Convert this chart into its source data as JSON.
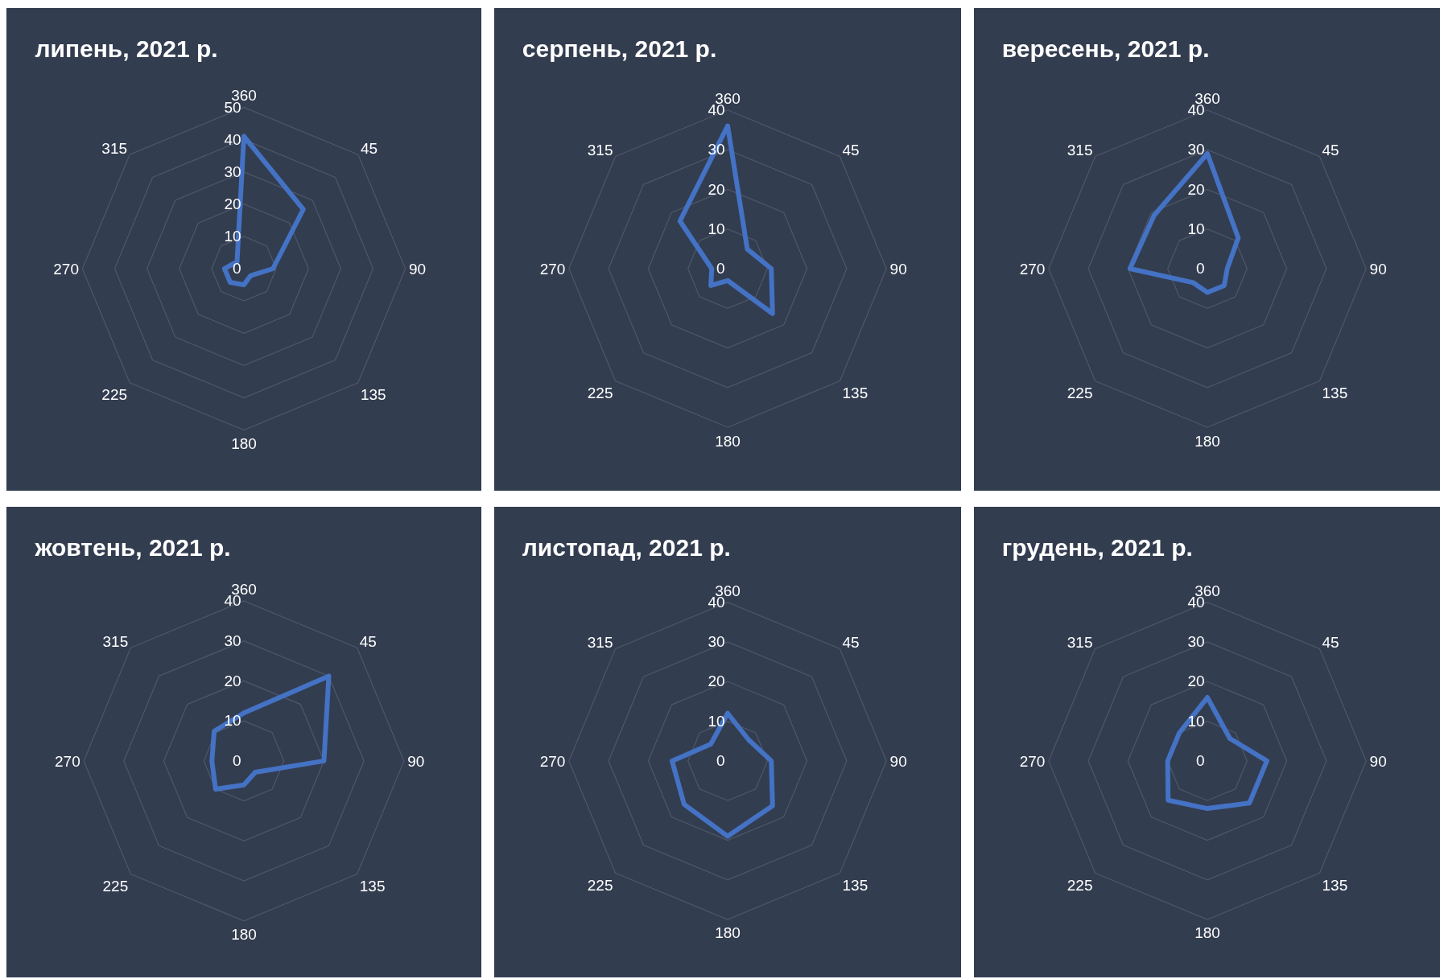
{
  "chart_data": [
    {
      "type": "radar",
      "title": "липень, 2021 р.",
      "categories": [
        "360",
        "45",
        "90",
        "135",
        "180",
        "225",
        "270",
        "315"
      ],
      "series": [
        {
          "color": "#4472c4",
          "values": [
            41,
            26,
            9,
            3,
            5,
            6,
            6,
            3
          ]
        }
      ],
      "ylim": [
        0,
        50
      ],
      "yticks": [
        0,
        10,
        20,
        30,
        40,
        50
      ],
      "grid": true
    },
    {
      "type": "radar",
      "title": "серпень, 2021 р.",
      "categories": [
        "360",
        "45",
        "90",
        "135",
        "180",
        "225",
        "270",
        "315"
      ],
      "series": [
        {
          "color": "#4472c4",
          "values": [
            36,
            7,
            11,
            16,
            3,
            6,
            4,
            17
          ]
        }
      ],
      "ylim": [
        0,
        40
      ],
      "yticks": [
        0,
        10,
        20,
        30,
        40
      ],
      "grid": true
    },
    {
      "type": "radar",
      "title": "вересень, 2021 р.",
      "categories": [
        "360",
        "45",
        "90",
        "135",
        "180",
        "225",
        "270",
        "315"
      ],
      "series": [
        {
          "color": "#4472c4",
          "values": [
            29,
            11,
            5,
            6,
            6,
            5,
            19.5,
            19
          ]
        }
      ],
      "ylim": [
        0,
        40
      ],
      "yticks": [
        0,
        10,
        20,
        30,
        40
      ],
      "grid": true
    },
    {
      "type": "radar",
      "title": "жовтень, 2021 р.",
      "categories": [
        "360",
        "45",
        "90",
        "135",
        "180",
        "225",
        "270",
        "315"
      ],
      "series": [
        {
          "color": "#4472c4",
          "values": [
            12,
            30,
            20,
            4,
            6,
            10,
            8,
            10.5
          ]
        }
      ],
      "ylim": [
        0,
        40
      ],
      "yticks": [
        0,
        10,
        20,
        30,
        40
      ],
      "grid": true
    },
    {
      "type": "radar",
      "title": "листопад, 2021 р.",
      "categories": [
        "360",
        "45",
        "90",
        "135",
        "180",
        "225",
        "270",
        "315"
      ],
      "series": [
        {
          "color": "#4472c4",
          "values": [
            12,
            7.5,
            11,
            16,
            19,
            15.5,
            14,
            6
          ]
        }
      ],
      "ylim": [
        0,
        40
      ],
      "yticks": [
        0,
        10,
        20,
        30,
        40
      ],
      "grid": true
    },
    {
      "type": "radar",
      "title": "грудень, 2021 р.",
      "categories": [
        "360",
        "45",
        "90",
        "135",
        "180",
        "225",
        "270",
        "315"
      ],
      "series": [
        {
          "color": "#4472c4",
          "values": [
            16,
            8,
            15,
            15,
            12,
            14,
            10,
            10
          ]
        }
      ],
      "ylim": [
        0,
        40
      ],
      "yticks": [
        0,
        10,
        20,
        30,
        40
      ],
      "grid": true
    }
  ]
}
